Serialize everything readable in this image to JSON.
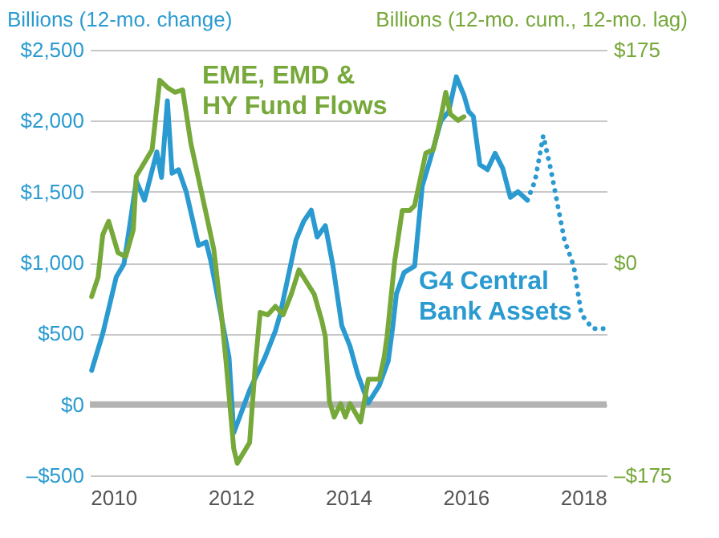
{
  "chart_data": {
    "type": "line",
    "xlabel": null,
    "ylabel": "Billions (12-mo. change)",
    "y2label": "Billions (12-mo. cum., 12-mo. lag)",
    "xlim": [
      2009.6,
      2018.4
    ],
    "xticks": [
      2010,
      2012,
      2014,
      2016,
      2018
    ],
    "ylim": [
      -500,
      2500
    ],
    "yticks": [
      {
        "value": -500,
        "label": "–$500"
      },
      {
        "value": 0,
        "label": "$0"
      },
      {
        "value": 500,
        "label": "$500"
      },
      {
        "value": 1000,
        "label": "$1,000"
      },
      {
        "value": 1500,
        "label": "$1,500"
      },
      {
        "value": 2000,
        "label": "$2,000"
      },
      {
        "value": 2500,
        "label": "$2,500"
      }
    ],
    "y2lim": [
      -175,
      175
    ],
    "y2ticks": [
      {
        "value": -175,
        "label": "–$175"
      },
      {
        "value": 0,
        "label": "$0"
      },
      {
        "value": 175,
        "label": "$175"
      }
    ],
    "grid": "y",
    "marker": "none",
    "ref_lines": [
      {
        "axis": "y",
        "value": 0,
        "label": null,
        "color": "#b3b3b3"
      }
    ],
    "series": [
      {
        "name": "G4 Central Bank Assets",
        "color": "#2a9ad0",
        "line_style": "solid",
        "x": [
          2009.63,
          2009.82,
          2010.05,
          2010.18,
          2010.26,
          2010.39,
          2010.53,
          2010.74,
          2010.82,
          2010.92,
          2011.0,
          2011.11,
          2011.24,
          2011.45,
          2011.58,
          2011.66,
          2011.97,
          2012.05,
          2012.32,
          2012.58,
          2012.76,
          2012.84,
          2013.11,
          2013.24,
          2013.37,
          2013.47,
          2013.61,
          2013.74,
          2013.89,
          2014.03,
          2014.16,
          2014.34,
          2014.53,
          2014.68,
          2014.76,
          2014.82,
          2014.95,
          2015.13,
          2015.26,
          2015.39,
          2015.58,
          2015.71,
          2015.84,
          2015.97,
          2016.05,
          2016.13,
          2016.24,
          2016.37,
          2016.5,
          2016.63,
          2016.76,
          2016.89,
          2017.05
        ],
        "values": [
          240,
          500,
          900,
          990,
          1210,
          1575,
          1440,
          1780,
          1600,
          2140,
          1630,
          1655,
          1500,
          1120,
          1145,
          1010,
          330,
          -200,
          100,
          330,
          520,
          635,
          1160,
          1290,
          1370,
          1180,
          1260,
          975,
          555,
          410,
          215,
          10,
          135,
          305,
          555,
          780,
          930,
          975,
          1540,
          1720,
          2000,
          2065,
          2310,
          2180,
          2065,
          2030,
          1690,
          1655,
          1770,
          1665,
          1460,
          1500,
          1440
        ]
      },
      {
        "color": "#2a9ad0",
        "line_style": "dotted",
        "x": [
          2017.05,
          2017.18,
          2017.32,
          2017.45,
          2017.68,
          2017.84,
          2017.97,
          2018.16,
          2018.34
        ],
        "values": [
          1440,
          1575,
          1895,
          1655,
          1160,
          975,
          635,
          535,
          535
        ]
      },
      {
        "name": "EME, EMD & HY Fund Flows",
        "color": "#76a83a",
        "line_style": "solid",
        "axis": "y2",
        "x": [
          2009.63,
          2009.74,
          2009.82,
          2009.92,
          2010.08,
          2010.21,
          2010.34,
          2010.39,
          2010.66,
          2010.79,
          2010.92,
          2011.05,
          2011.18,
          2011.32,
          2011.5,
          2011.71,
          2011.84,
          2011.92,
          2012.05,
          2012.11,
          2012.32,
          2012.42,
          2012.5,
          2012.63,
          2012.76,
          2012.89,
          2013.03,
          2013.16,
          2013.29,
          2013.42,
          2013.55,
          2013.61,
          2013.68,
          2013.76,
          2013.87,
          2013.95,
          2014.03,
          2014.21,
          2014.34,
          2014.53,
          2014.61,
          2014.66,
          2014.79,
          2014.92,
          2015.05,
          2015.13,
          2015.32,
          2015.45,
          2015.58,
          2015.66,
          2015.74,
          2015.87,
          2015.97
        ],
        "values": [
          -28,
          -12,
          23,
          34,
          8,
          5,
          27,
          71,
          93,
          150,
          144,
          140,
          142,
          98,
          58,
          11,
          -43,
          -82,
          -153,
          -165,
          -148,
          -82,
          -41,
          -43,
          -36,
          -43,
          -26,
          -6,
          -16,
          -26,
          -48,
          -61,
          -114,
          -127,
          -116,
          -127,
          -116,
          -131,
          -96,
          -96,
          -78,
          -61,
          1,
          43,
          43,
          47,
          90,
          93,
          120,
          140,
          122,
          117,
          120
        ]
      }
    ]
  }
}
